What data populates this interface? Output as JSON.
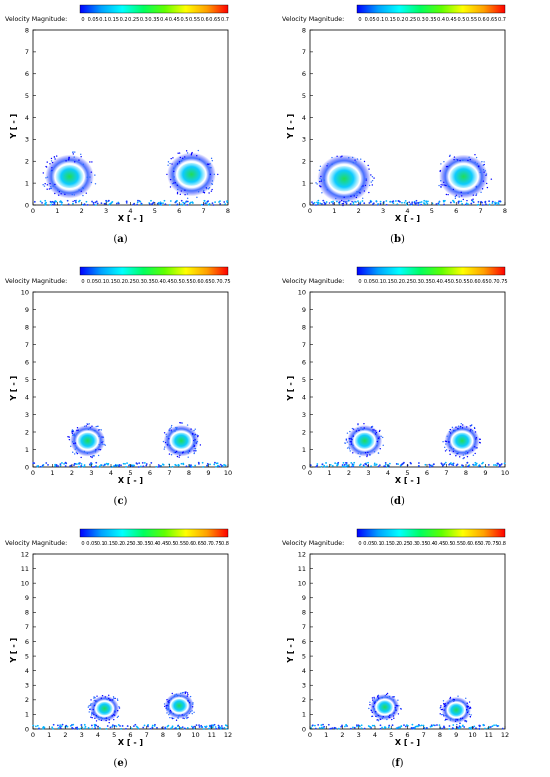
{
  "colormap": [
    "#0000ff",
    "#00a0ff",
    "#00ffff",
    "#00ff60",
    "#60ff00",
    "#ffff00",
    "#ffa000",
    "#ff0000"
  ],
  "chart_data": [
    {
      "type": "heatmap",
      "label": "(a)",
      "colorbar": {
        "title": "Velocity Magnitude:",
        "ticks": [
          "0",
          "0.05",
          "0.1",
          "0.15",
          "0.2",
          "0.25",
          "0.3",
          "0.35",
          "0.4",
          "0.45",
          "0.5",
          "0.55",
          "0.6",
          "0.65",
          "0.7"
        ]
      },
      "xlabel": "X [ - ]",
      "ylabel": "Y [ - ]",
      "xlim": [
        0,
        8
      ],
      "ylim": [
        0,
        8
      ],
      "xticks": [
        "0",
        "1",
        "2",
        "3",
        "4",
        "5",
        "6",
        "7",
        "8"
      ],
      "yticks": [
        "0",
        "1",
        "2",
        "3",
        "4",
        "5",
        "6",
        "7",
        "8"
      ],
      "vortices": [
        {
          "x": 1.5,
          "y": 1.3,
          "r": 1.0
        },
        {
          "x": 6.5,
          "y": 1.4,
          "r": 1.0
        }
      ]
    },
    {
      "type": "heatmap",
      "label": "(b)",
      "colorbar": {
        "title": "Velocity Magnitude:",
        "ticks": [
          "0",
          "0.05",
          "0.1",
          "0.15",
          "0.2",
          "0.25",
          "0.3",
          "0.35",
          "0.4",
          "0.45",
          "0.5",
          "0.55",
          "0.6",
          "0.65",
          "0.7"
        ]
      },
      "xlabel": "X [ - ]",
      "ylabel": "Y [ - ]",
      "xlim": [
        0,
        8
      ],
      "ylim": [
        0,
        8
      ],
      "xticks": [
        "0",
        "1",
        "2",
        "3",
        "4",
        "5",
        "6",
        "7",
        "8"
      ],
      "yticks": [
        "0",
        "1",
        "2",
        "3",
        "4",
        "5",
        "6",
        "7",
        "8"
      ],
      "vortices": [
        {
          "x": 1.4,
          "y": 1.2,
          "r": 1.1
        },
        {
          "x": 6.3,
          "y": 1.3,
          "r": 1.0
        }
      ]
    },
    {
      "type": "heatmap",
      "label": "(c)",
      "colorbar": {
        "title": "Velocity Magnitude:",
        "ticks": [
          "0",
          "0.05",
          "0.1",
          "0.15",
          "0.2",
          "0.25",
          "0.3",
          "0.35",
          "0.4",
          "0.45",
          "0.5",
          "0.55",
          "0.6",
          "0.65",
          "0.7",
          "0.75"
        ]
      },
      "xlabel": "X [ - ]",
      "ylabel": "Y [ - ]",
      "xlim": [
        0,
        10
      ],
      "ylim": [
        0,
        10
      ],
      "xticks": [
        "0",
        "1",
        "2",
        "3",
        "4",
        "5",
        "6",
        "7",
        "8",
        "9",
        "10"
      ],
      "yticks": [
        "0",
        "1",
        "2",
        "3",
        "4",
        "5",
        "6",
        "7",
        "8",
        "9",
        "10"
      ],
      "vortices": [
        {
          "x": 2.8,
          "y": 1.5,
          "r": 0.9
        },
        {
          "x": 7.6,
          "y": 1.5,
          "r": 0.9
        }
      ]
    },
    {
      "type": "heatmap",
      "label": "(d)",
      "colorbar": {
        "title": "Velocity Magnitude:",
        "ticks": [
          "0",
          "0.05",
          "0.1",
          "0.15",
          "0.2",
          "0.25",
          "0.3",
          "0.35",
          "0.4",
          "0.45",
          "0.5",
          "0.55",
          "0.6",
          "0.65",
          "0.7",
          "0.75"
        ]
      },
      "xlabel": "X [ - ]",
      "ylabel": "Y [ - ]",
      "xlim": [
        0,
        10
      ],
      "ylim": [
        0,
        10
      ],
      "xticks": [
        "0",
        "1",
        "2",
        "3",
        "4",
        "5",
        "6",
        "7",
        "8",
        "9",
        "10"
      ],
      "yticks": [
        "0",
        "1",
        "2",
        "3",
        "4",
        "5",
        "6",
        "7",
        "8",
        "9",
        "10"
      ],
      "vortices": [
        {
          "x": 2.8,
          "y": 1.5,
          "r": 0.9
        },
        {
          "x": 7.8,
          "y": 1.5,
          "r": 0.9
        }
      ]
    },
    {
      "type": "heatmap",
      "label": "(e)",
      "colorbar": {
        "title": "Velocity Magnitude:",
        "ticks": [
          "0",
          "0.05",
          "0.1",
          "0.15",
          "0.2",
          "0.25",
          "0.3",
          "0.35",
          "0.4",
          "0.45",
          "0.5",
          "0.55",
          "0.6",
          "0.65",
          "0.7",
          "0.75",
          "0.8"
        ]
      },
      "xlabel": "X [ - ]",
      "ylabel": "Y [ - ]",
      "xlim": [
        0,
        12
      ],
      "ylim": [
        0,
        12
      ],
      "xticks": [
        "0",
        "1",
        "2",
        "3",
        "4",
        "5",
        "6",
        "7",
        "8",
        "9",
        "10",
        "11",
        "12"
      ],
      "yticks": [
        "0",
        "1",
        "2",
        "3",
        "4",
        "5",
        "6",
        "7",
        "8",
        "9",
        "10",
        "11",
        "12"
      ],
      "vortices": [
        {
          "x": 4.4,
          "y": 1.4,
          "r": 0.9
        },
        {
          "x": 9.0,
          "y": 1.6,
          "r": 0.9
        }
      ]
    },
    {
      "type": "heatmap",
      "label": "(f)",
      "colorbar": {
        "title": "Velocity Magnitude:",
        "ticks": [
          "0",
          "0.05",
          "0.1",
          "0.15",
          "0.2",
          "0.25",
          "0.3",
          "0.35",
          "0.4",
          "0.45",
          "0.5",
          "0.55",
          "0.6",
          "0.65",
          "0.7",
          "0.75",
          "0.8"
        ]
      },
      "xlabel": "X [ - ]",
      "ylabel": "Y [ - ]",
      "xlim": [
        0,
        12
      ],
      "ylim": [
        0,
        12
      ],
      "xticks": [
        "0",
        "1",
        "2",
        "3",
        "4",
        "5",
        "6",
        "7",
        "8",
        "9",
        "10",
        "11",
        "12"
      ],
      "yticks": [
        "0",
        "1",
        "2",
        "3",
        "4",
        "5",
        "6",
        "7",
        "8",
        "9",
        "10",
        "11",
        "12"
      ],
      "vortices": [
        {
          "x": 4.6,
          "y": 1.5,
          "r": 0.9
        },
        {
          "x": 9.0,
          "y": 1.3,
          "r": 0.9
        }
      ]
    }
  ]
}
